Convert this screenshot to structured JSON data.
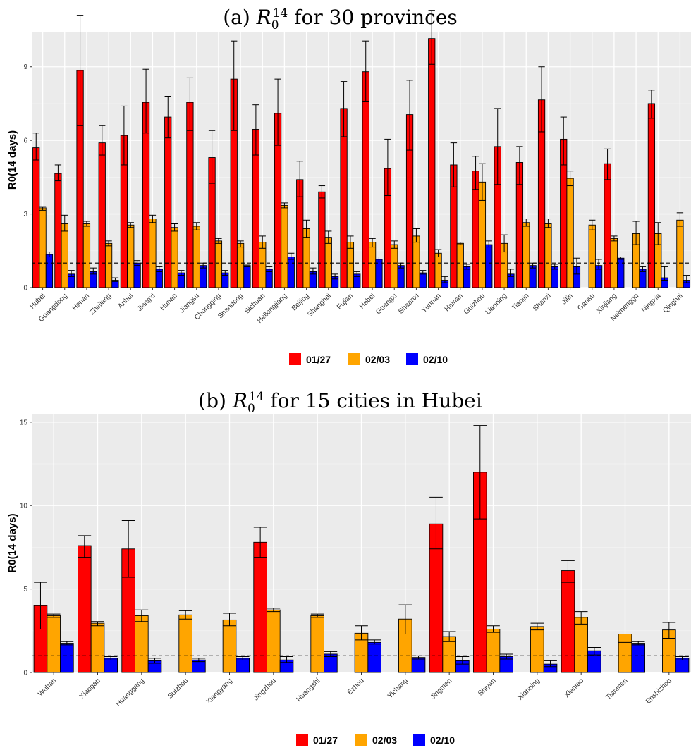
{
  "chart_data": [
    {
      "type": "bar",
      "title": "(a) R0^14 for 30 provinces",
      "title_prefix": "(a)",
      "title_sym": "R",
      "title_sub": "0",
      "title_sup": "14",
      "title_rest": "for 30 provinces",
      "ylabel": "R0(14 days)",
      "xlabel": "",
      "ylim": [
        0,
        10.4
      ],
      "yticks": [
        0,
        3,
        6,
        9
      ],
      "reference_line": 1,
      "grid": true,
      "legend": "bottom",
      "categories": [
        "Hubei",
        "Guangdong",
        "Henan",
        "Zhejiang",
        "Anhui",
        "Jiangxi",
        "Hunan",
        "Jiangsu",
        "Chongqing",
        "Shandong",
        "Sichuan",
        "Heilongjiang",
        "Beijing",
        "Shanghai",
        "Fujian",
        "Hebei",
        "Guangxi",
        "Shaanxi",
        "Yunnan",
        "Hainan",
        "Guizhou",
        "Liaoning",
        "Tianjin",
        "Shanxi",
        "Jilin",
        "Gansu",
        "Xinjiang",
        "Neimenggu",
        "Ningxia",
        "Qinghai"
      ],
      "series": [
        {
          "name": "01/27",
          "color": "#ff0000",
          "values": [
            5.7,
            4.65,
            8.85,
            5.9,
            6.2,
            7.55,
            6.95,
            7.55,
            5.3,
            8.5,
            6.45,
            7.1,
            4.4,
            3.9,
            7.3,
            8.8,
            4.85,
            7.05,
            10.15,
            5.0,
            4.75,
            5.75,
            5.1,
            7.65,
            6.05,
            null,
            5.05,
            null,
            7.5,
            null
          ],
          "lower": [
            5.2,
            4.35,
            6.6,
            5.4,
            5.0,
            6.3,
            6.1,
            6.4,
            4.25,
            6.4,
            5.4,
            5.8,
            3.7,
            3.65,
            6.15,
            7.6,
            3.75,
            5.6,
            9.1,
            4.1,
            4.0,
            4.2,
            4.2,
            6.35,
            5.0,
            null,
            4.4,
            null,
            6.9,
            null
          ],
          "upper": [
            6.3,
            5.0,
            11.1,
            6.6,
            7.4,
            8.9,
            7.8,
            8.55,
            6.4,
            10.05,
            7.45,
            8.5,
            5.15,
            4.15,
            8.4,
            10.05,
            6.05,
            8.45,
            11.3,
            5.9,
            5.35,
            7.3,
            5.75,
            9.0,
            6.95,
            null,
            5.65,
            null,
            8.05,
            null
          ]
        },
        {
          "name": "02/03",
          "color": "#ffa500",
          "values": [
            3.25,
            2.6,
            2.6,
            1.8,
            2.55,
            2.8,
            2.45,
            2.5,
            1.9,
            1.8,
            1.85,
            3.35,
            2.4,
            2.05,
            1.85,
            1.85,
            1.75,
            2.1,
            1.4,
            1.8,
            4.3,
            1.8,
            2.65,
            2.6,
            4.45,
            2.55,
            2.0,
            2.2,
            2.2,
            2.75
          ],
          "lower": [
            3.15,
            2.3,
            2.5,
            1.7,
            2.45,
            2.65,
            2.3,
            2.35,
            1.8,
            1.65,
            1.6,
            3.25,
            2.05,
            1.8,
            1.6,
            1.65,
            1.6,
            1.85,
            1.25,
            1.75,
            3.55,
            1.45,
            2.5,
            2.45,
            4.15,
            2.35,
            1.9,
            1.75,
            1.75,
            2.5
          ],
          "upper": [
            3.3,
            2.95,
            2.7,
            1.9,
            2.65,
            2.95,
            2.6,
            2.65,
            2.0,
            1.9,
            2.1,
            3.45,
            2.75,
            2.3,
            2.1,
            2.0,
            1.9,
            2.4,
            1.55,
            1.85,
            5.05,
            2.15,
            2.8,
            2.8,
            4.75,
            2.75,
            2.1,
            2.7,
            2.65,
            3.05
          ]
        },
        {
          "name": "02/10",
          "color": "#0000ff",
          "values": [
            1.35,
            0.55,
            0.65,
            0.3,
            1.0,
            0.75,
            0.6,
            0.9,
            0.6,
            0.9,
            0.75,
            1.25,
            0.65,
            0.45,
            0.55,
            1.15,
            0.9,
            0.6,
            0.3,
            0.85,
            1.75,
            0.55,
            0.9,
            0.85,
            0.85,
            0.9,
            1.2,
            0.75,
            0.4,
            0.3
          ],
          "lower": [
            1.25,
            0.45,
            0.55,
            0.25,
            0.9,
            0.65,
            0.5,
            0.8,
            0.5,
            0.85,
            0.65,
            1.15,
            0.55,
            0.35,
            0.45,
            1.05,
            0.8,
            0.55,
            0.2,
            0.75,
            1.65,
            0.45,
            0.8,
            0.75,
            0.55,
            0.75,
            1.15,
            0.65,
            0.3,
            0.2
          ],
          "upper": [
            1.45,
            0.7,
            0.8,
            0.4,
            1.1,
            0.85,
            0.7,
            1.0,
            0.7,
            0.95,
            0.85,
            1.4,
            0.8,
            0.55,
            0.65,
            1.25,
            1.0,
            0.7,
            0.45,
            0.95,
            1.9,
            0.75,
            1.0,
            0.95,
            1.2,
            1.15,
            1.25,
            0.85,
            0.85,
            0.5
          ]
        }
      ]
    },
    {
      "type": "bar",
      "title": "(b) R0^14 for 15 cities in Hubei",
      "title_prefix": "(b)",
      "title_sym": "R",
      "title_sub": "0",
      "title_sup": "14",
      "title_rest": "for 15 cities in Hubei",
      "ylabel": "R0(14 days)",
      "xlabel": "",
      "ylim": [
        0,
        15.5
      ],
      "yticks": [
        0,
        5,
        10,
        15
      ],
      "reference_line": 1,
      "grid": true,
      "legend": "bottom",
      "categories": [
        "Wuhan",
        "Xiaogan",
        "Huanggang",
        "Suizhou",
        "Xiangyang",
        "Jingzhou",
        "Huangshi",
        "Ezhou",
        "Yichang",
        "Jingmen",
        "Shiyan",
        "Xianning",
        "Xiantao",
        "Tianmen",
        "Enshizhou"
      ],
      "series": [
        {
          "name": "01/27",
          "color": "#ff0000",
          "values": [
            4.0,
            7.6,
            7.4,
            null,
            null,
            7.8,
            null,
            null,
            null,
            8.9,
            12.0,
            null,
            6.1,
            null,
            null
          ],
          "lower": [
            2.6,
            6.9,
            5.7,
            null,
            null,
            6.9,
            null,
            null,
            null,
            7.4,
            9.2,
            null,
            5.4,
            null,
            null
          ],
          "upper": [
            5.4,
            8.2,
            9.1,
            null,
            null,
            8.7,
            null,
            null,
            null,
            10.5,
            14.8,
            null,
            6.7,
            null,
            null
          ]
        },
        {
          "name": "02/03",
          "color": "#ffa500",
          "values": [
            3.4,
            2.95,
            3.4,
            3.45,
            3.15,
            3.75,
            3.4,
            2.35,
            3.2,
            2.15,
            2.6,
            2.75,
            3.3,
            2.3,
            2.55
          ],
          "lower": [
            3.3,
            2.8,
            3.05,
            3.2,
            2.8,
            3.65,
            3.3,
            1.95,
            2.3,
            1.85,
            2.4,
            2.55,
            2.9,
            1.8,
            2.05
          ],
          "upper": [
            3.5,
            3.05,
            3.75,
            3.7,
            3.55,
            3.85,
            3.5,
            2.8,
            4.05,
            2.45,
            2.8,
            2.95,
            3.65,
            2.85,
            3.0
          ]
        },
        {
          "name": "02/10",
          "color": "#0000ff",
          "values": [
            1.75,
            0.85,
            0.7,
            0.75,
            0.85,
            0.75,
            1.1,
            1.8,
            0.9,
            0.7,
            0.95,
            0.5,
            1.3,
            1.75,
            0.85
          ],
          "lower": [
            1.65,
            0.75,
            0.55,
            0.65,
            0.75,
            0.6,
            0.95,
            1.7,
            0.8,
            0.5,
            0.8,
            0.35,
            1.05,
            1.65,
            0.75
          ],
          "upper": [
            1.85,
            0.95,
            0.85,
            0.85,
            0.95,
            0.95,
            1.25,
            1.95,
            1.0,
            0.95,
            1.1,
            0.7,
            1.5,
            1.85,
            0.95
          ]
        }
      ]
    }
  ],
  "legend_labels": [
    "01/27",
    "02/03",
    "02/10"
  ]
}
